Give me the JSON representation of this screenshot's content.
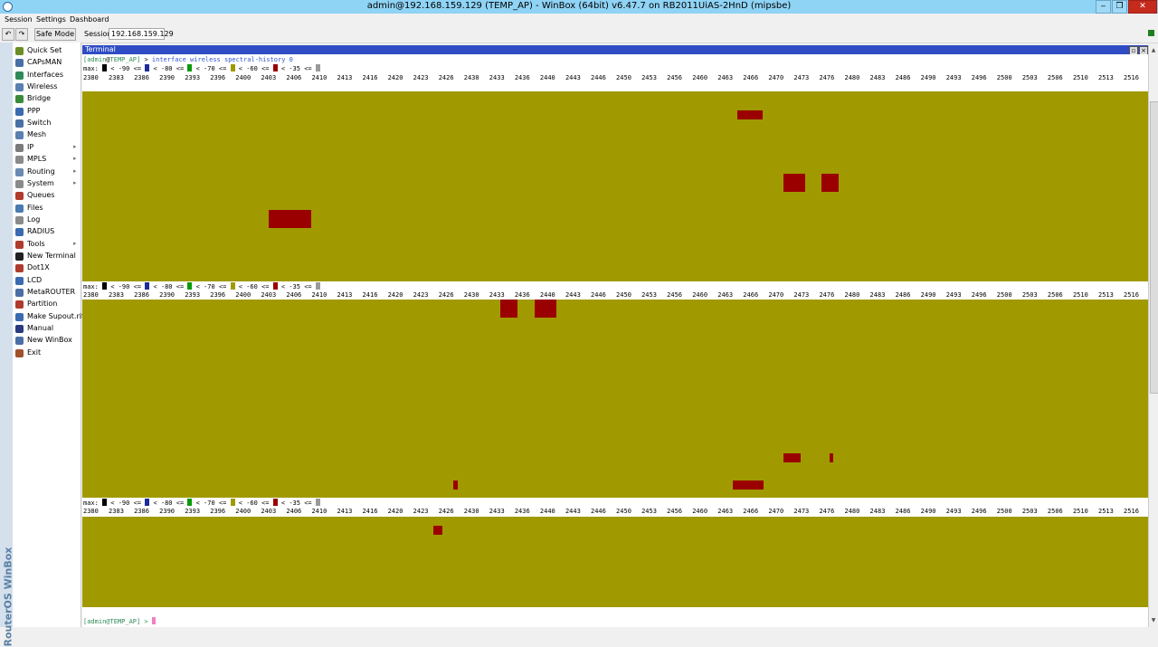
{
  "window": {
    "title": "admin@192.168.159.129 (TEMP_AP) - WinBox (64bit) v6.47.7 on RB2011UiAS-2HnD (mipsbe)"
  },
  "menu": [
    "Session",
    "Settings",
    "Dashboard"
  ],
  "toolbar": {
    "safe_mode": "Safe Mode",
    "session_label": "Session:",
    "session_value": "192.168.159.129"
  },
  "sidebar_brand": "RouterOS WinBox",
  "sidebar": [
    {
      "label": "Quick Set",
      "icon": "quick-set-icon",
      "color": "#6b8e23",
      "submenu": false
    },
    {
      "label": "CAPsMAN",
      "icon": "capsman-icon",
      "color": "#4a6fa5",
      "submenu": false
    },
    {
      "label": "Interfaces",
      "icon": "interfaces-icon",
      "color": "#2e8b57",
      "submenu": false
    },
    {
      "label": "Wireless",
      "icon": "wireless-icon",
      "color": "#5b7fb0",
      "submenu": false
    },
    {
      "label": "Bridge",
      "icon": "bridge-icon",
      "color": "#3a8a3a",
      "submenu": false
    },
    {
      "label": "PPP",
      "icon": "ppp-icon",
      "color": "#3a6ab0",
      "submenu": false
    },
    {
      "label": "Switch",
      "icon": "switch-icon",
      "color": "#4a6fa5",
      "submenu": false
    },
    {
      "label": "Mesh",
      "icon": "mesh-icon",
      "color": "#5a7fb0",
      "submenu": false
    },
    {
      "label": "IP",
      "icon": "ip-icon",
      "color": "#7a7a7a",
      "submenu": true
    },
    {
      "label": "MPLS",
      "icon": "mpls-icon",
      "color": "#8a8a8a",
      "submenu": true
    },
    {
      "label": "Routing",
      "icon": "routing-icon",
      "color": "#6a8ab0",
      "submenu": true
    },
    {
      "label": "System",
      "icon": "system-icon",
      "color": "#8a8a8a",
      "submenu": true
    },
    {
      "label": "Queues",
      "icon": "queues-icon",
      "color": "#b03a2e",
      "submenu": false
    },
    {
      "label": "Files",
      "icon": "files-icon",
      "color": "#4a7ab0",
      "submenu": false
    },
    {
      "label": "Log",
      "icon": "log-icon",
      "color": "#8a8a8a",
      "submenu": false
    },
    {
      "label": "RADIUS",
      "icon": "radius-icon",
      "color": "#3a6ab0",
      "submenu": false
    },
    {
      "label": "Tools",
      "icon": "tools-icon",
      "color": "#b03a2e",
      "submenu": true
    },
    {
      "label": "New Terminal",
      "icon": "terminal-icon",
      "color": "#222222",
      "submenu": false
    },
    {
      "label": "Dot1X",
      "icon": "dot1x-icon",
      "color": "#b03a2e",
      "submenu": false
    },
    {
      "label": "LCD",
      "icon": "lcd-icon",
      "color": "#3a6ab0",
      "submenu": false
    },
    {
      "label": "MetaROUTER",
      "icon": "metarouter-icon",
      "color": "#4a6fa5",
      "submenu": false
    },
    {
      "label": "Partition",
      "icon": "partition-icon",
      "color": "#b03a2e",
      "submenu": false
    },
    {
      "label": "Make Supout.rif",
      "icon": "supout-icon",
      "color": "#3a6ab0",
      "submenu": false
    },
    {
      "label": "Manual",
      "icon": "manual-icon",
      "color": "#2a3a80",
      "submenu": false
    },
    {
      "label": "New WinBox",
      "icon": "winbox-icon",
      "color": "#4a6fa5",
      "submenu": false
    },
    {
      "label": "Exit",
      "icon": "exit-icon",
      "color": "#a0522d",
      "submenu": false
    }
  ],
  "terminal": {
    "title": "Terminal",
    "prompt_user": "admin",
    "prompt_host": "TEMP_AP",
    "prompt_full": "[admin@TEMP_AP] >",
    "command": "interface wireless spectral-history 0",
    "legend": [
      {
        "text": "max:",
        "color": "#000000"
      },
      {
        "text": "< -90 <=",
        "color": "#1c2b9a"
      },
      {
        "text": "< -80 <=",
        "color": "#0a9a0a"
      },
      {
        "text": "< -70 <=",
        "color": "#a09a00"
      },
      {
        "text": "< -60 <=",
        "color": "#9a0000"
      },
      {
        "text": "< -35 <=",
        "color": "#9a9a9a"
      }
    ],
    "frequencies": [
      "2380",
      "2383",
      "2386",
      "2390",
      "2393",
      "2396",
      "2400",
      "2403",
      "2406",
      "2410",
      "2413",
      "2416",
      "2420",
      "2423",
      "2426",
      "2430",
      "2433",
      "2436",
      "2440",
      "2443",
      "2446",
      "2450",
      "2453",
      "2456",
      "2460",
      "2463",
      "2466",
      "2470",
      "2473",
      "2476",
      "2480",
      "2483",
      "2486",
      "2490",
      "2493",
      "2496",
      "2500",
      "2503",
      "2506",
      "2510",
      "2513",
      "2516"
    ]
  },
  "colors": {
    "green": "#0a9a0a",
    "olive": "#a09a00",
    "red": "#9a0000",
    "blue": "#1c2b9a",
    "titlebar": "#8fd3f5",
    "terminal_header": "#2f4cc4"
  }
}
